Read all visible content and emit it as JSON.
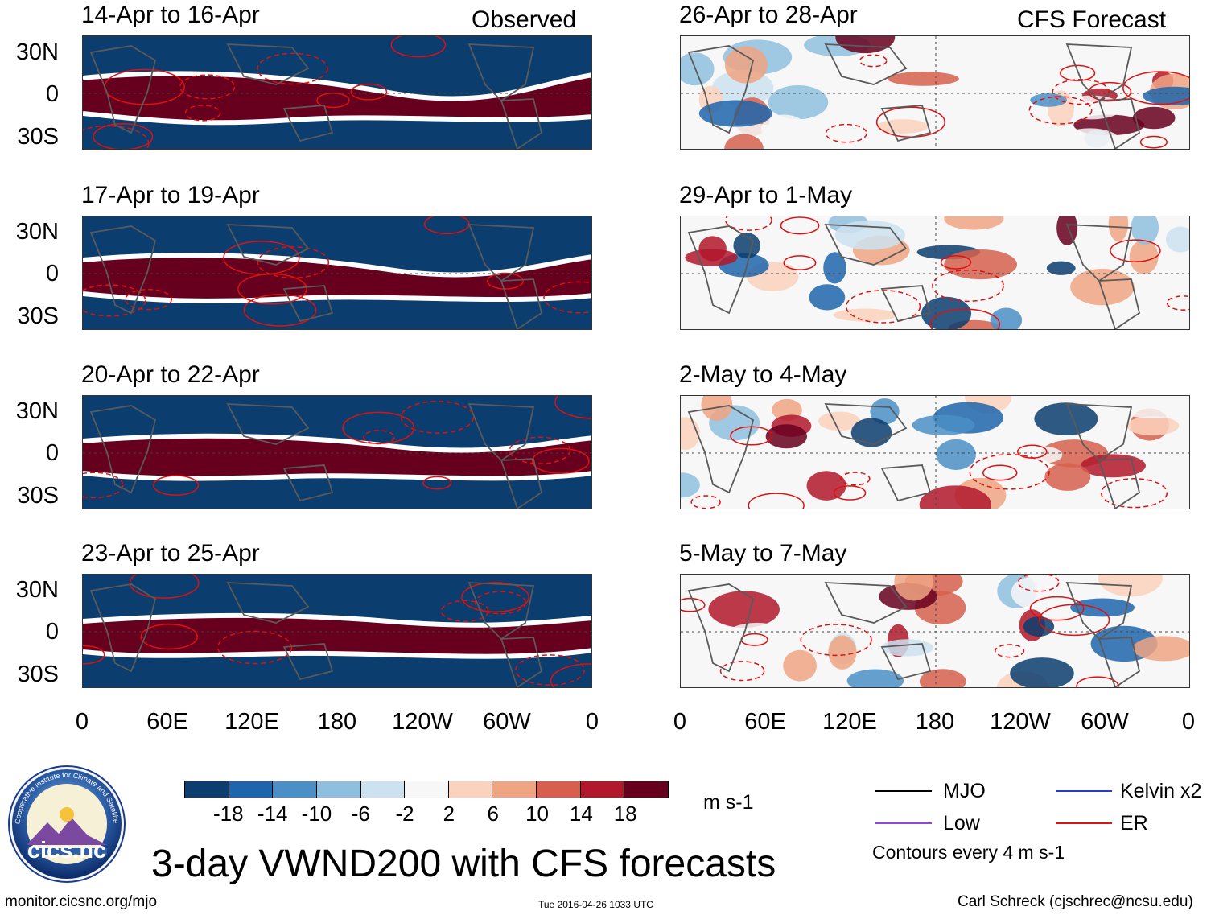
{
  "chart_data": {
    "type": "heatmap",
    "title": "3-day VWND200 with CFS forecasts",
    "variable": "VWND200",
    "units": "m s-1",
    "observed_label": "Observed",
    "forecast_label": "CFS Forecast",
    "lat_ticks": [
      "30N",
      "0",
      "30S"
    ],
    "lon_ticks": [
      "0",
      "60E",
      "120E",
      "180",
      "120W",
      "60W",
      "0"
    ],
    "observed_panels": [
      {
        "title": "14-Apr to 16-Apr"
      },
      {
        "title": "17-Apr to 19-Apr"
      },
      {
        "title": "20-Apr to 22-Apr"
      },
      {
        "title": "23-Apr to 25-Apr"
      }
    ],
    "forecast_panels": [
      {
        "title": "26-Apr to 28-Apr"
      },
      {
        "title": "29-Apr to 1-May"
      },
      {
        "title": "2-May to 4-May"
      },
      {
        "title": "5-May to 7-May"
      }
    ],
    "colorbar": {
      "ticks": [
        "-18",
        "-14",
        "-10",
        "-6",
        "-2",
        "2",
        "6",
        "10",
        "14",
        "18"
      ],
      "colors": [
        "#0b3d6e",
        "#1f65ab",
        "#4a8fc6",
        "#8fbfdf",
        "#cde2f0",
        "#f7f7f7",
        "#fbd2bd",
        "#f0a582",
        "#d6604d",
        "#b2182b",
        "#67001f"
      ]
    },
    "legend": [
      {
        "label": "MJO",
        "color": "#000000"
      },
      {
        "label": "Kelvin x2",
        "color": "#1f3fc7"
      },
      {
        "label": "Low",
        "color": "#9b40e0"
      },
      {
        "label": "ER",
        "color": "#e01010"
      }
    ],
    "contour_note": "Contours every 4 m s-1"
  },
  "footer": {
    "url": "monitor.cicsnc.org/mjo",
    "timestamp": "Tue 2016-04-26 1033 UTC",
    "author": "Carl Schreck (cjschrec@ncsu.edu)"
  },
  "logo": {
    "text": "cics.nc",
    "ring_text": "Cooperative Institute for Climate and Satellites"
  }
}
